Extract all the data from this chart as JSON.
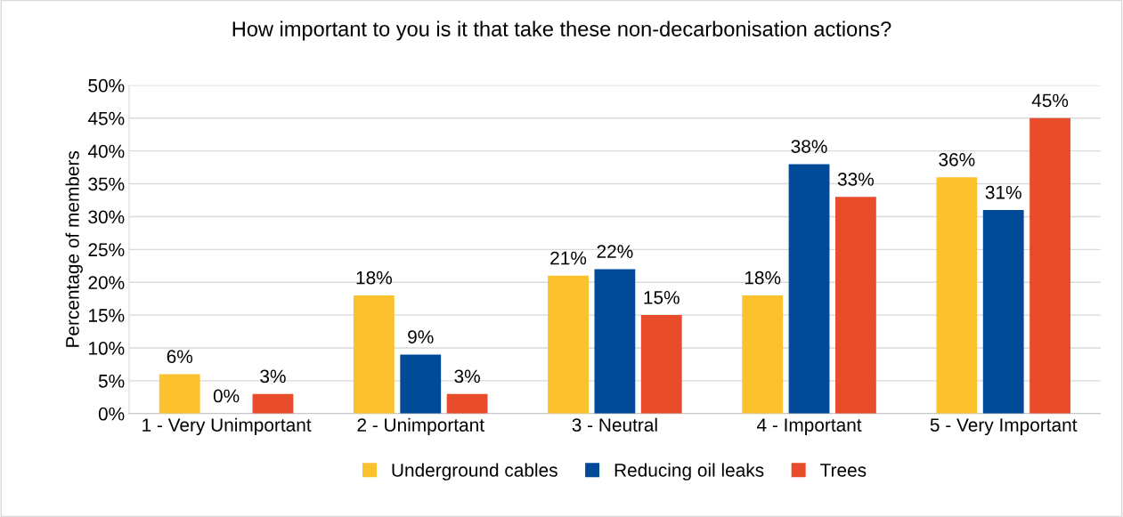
{
  "chart_data": {
    "type": "bar",
    "title": "How important to you is it that take these non-decarbonisation actions?",
    "ylabel": "Percentage of members",
    "categories": [
      "1 - Very Unimportant",
      "2 - Unimportant",
      "3 - Neutral",
      "4 - Important",
      "5 - Very Important"
    ],
    "series": [
      {
        "name": "Underground cables",
        "color": "#fcc22d",
        "values": [
          6,
          18,
          21,
          18,
          36
        ],
        "value_labels": [
          "6%",
          "18%",
          "21%",
          "18%",
          "36%"
        ]
      },
      {
        "name": "Reducing oil leaks",
        "color": "#004a98",
        "values": [
          0,
          9,
          22,
          38,
          31
        ],
        "value_labels": [
          "0%",
          "9%",
          "22%",
          "38%",
          "31%"
        ]
      },
      {
        "name": "Trees",
        "color": "#e84c2a",
        "values": [
          3,
          3,
          15,
          33,
          45
        ],
        "value_labels": [
          "3%",
          "3%",
          "15%",
          "33%",
          "45%"
        ]
      }
    ],
    "ylim": [
      0,
      50
    ],
    "yticks": [
      {
        "value": 0,
        "label": "0%"
      },
      {
        "value": 5,
        "label": "5%"
      },
      {
        "value": 10,
        "label": "10%"
      },
      {
        "value": 15,
        "label": "15%"
      },
      {
        "value": 20,
        "label": "20%"
      },
      {
        "value": 25,
        "label": "25%"
      },
      {
        "value": 30,
        "label": "30%"
      },
      {
        "value": 35,
        "label": "35%"
      },
      {
        "value": 40,
        "label": "40%"
      },
      {
        "value": 45,
        "label": "45%"
      },
      {
        "value": 50,
        "label": "50%"
      }
    ],
    "grid": "y",
    "legend": "bottom"
  }
}
